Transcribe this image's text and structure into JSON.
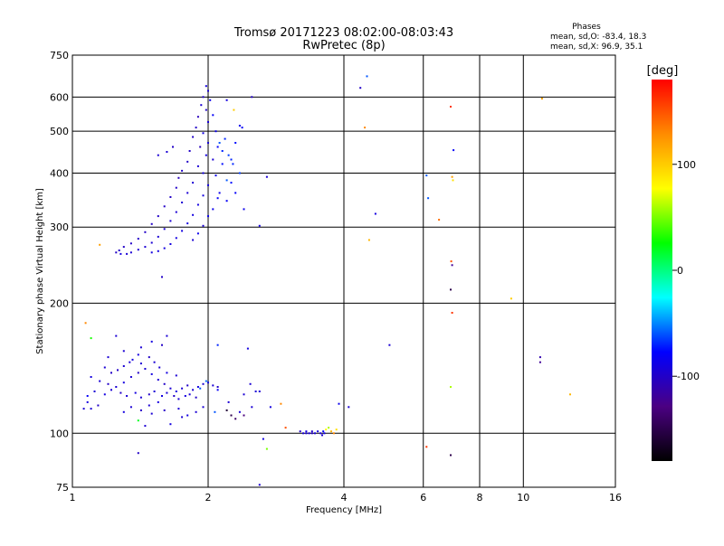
{
  "chart_data": {
    "type": "scatter",
    "title": "Tromsø 20171223 08:02:00-08:03:43",
    "subtitle": "RwPretec (8p)",
    "xlabel": "Frequency [MHz]",
    "ylabel": "Stationary phase Virtual Height [km]",
    "x_scale": "log",
    "y_scale": "log",
    "xlim": [
      1,
      16
    ],
    "ylim": [
      75,
      750
    ],
    "x_ticks": [
      1,
      2,
      4,
      6,
      8,
      10,
      16
    ],
    "x_tick_labels": [
      "1",
      "2",
      "4",
      "6",
      "8",
      "10",
      "16"
    ],
    "y_ticks": [
      75,
      100,
      200,
      300,
      400,
      500,
      600,
      750
    ],
    "y_tick_labels": [
      "75",
      "100",
      "200",
      "300",
      "400",
      "500",
      "600",
      "750"
    ],
    "grid": true,
    "colorbar": {
      "label": "[deg]",
      "range": [
        -180,
        180
      ],
      "ticks": [
        100,
        0,
        -100
      ],
      "tick_labels": [
        "100",
        "0",
        "-100"
      ],
      "colors": [
        "#000000",
        "#4b0082",
        "#0000ff",
        "#00ffff",
        "#00ff00",
        "#ffff00",
        "#ff8c00",
        "#ff0000"
      ]
    },
    "stats": {
      "heading": "Phases",
      "line1": "mean, sd,O: -83.4, 18.3",
      "line2": "mean, sd,X:  96.9, 35.1"
    },
    "series": [
      {
        "points": [
          [
            1.98,
            636,
            -90
          ],
          [
            2.0,
            620,
            -95
          ],
          [
            1.95,
            600,
            -100
          ],
          [
            2.02,
            590,
            -85
          ],
          [
            1.93,
            575,
            -95
          ],
          [
            1.98,
            560,
            -100
          ],
          [
            2.05,
            545,
            -80
          ],
          [
            1.9,
            540,
            -105
          ],
          [
            2.0,
            525,
            -95
          ],
          [
            1.88,
            510,
            -100
          ],
          [
            1.95,
            495,
            -90
          ],
          [
            2.08,
            500,
            -85
          ],
          [
            1.85,
            485,
            -100
          ],
          [
            2.0,
            470,
            -95
          ],
          [
            1.92,
            460,
            -105
          ],
          [
            2.1,
            460,
            -80
          ],
          [
            1.82,
            450,
            -100
          ],
          [
            1.98,
            440,
            -90
          ],
          [
            2.05,
            430,
            -95
          ],
          [
            1.8,
            425,
            -100
          ],
          [
            1.9,
            415,
            -95
          ],
          [
            2.15,
            420,
            -75
          ],
          [
            1.75,
            405,
            -100
          ],
          [
            1.95,
            400,
            -90
          ],
          [
            2.08,
            395,
            -85
          ],
          [
            1.72,
            390,
            -105
          ],
          [
            1.85,
            380,
            -95
          ],
          [
            2.0,
            375,
            -90
          ],
          [
            2.2,
            385,
            -60
          ],
          [
            1.7,
            370,
            -100
          ],
          [
            1.8,
            360,
            -95
          ],
          [
            1.95,
            355,
            -90
          ],
          [
            2.1,
            350,
            -80
          ],
          [
            1.65,
            352,
            -100
          ],
          [
            1.75,
            342,
            -95
          ],
          [
            1.9,
            338,
            -90
          ],
          [
            2.05,
            330,
            -85
          ],
          [
            1.6,
            335,
            -100
          ],
          [
            1.7,
            325,
            -95
          ],
          [
            1.85,
            320,
            -90
          ],
          [
            2.0,
            318,
            -85
          ],
          [
            1.55,
            318,
            -100
          ],
          [
            1.65,
            310,
            -95
          ],
          [
            1.8,
            306,
            -90
          ],
          [
            1.95,
            302,
            -95
          ],
          [
            1.5,
            305,
            -100
          ],
          [
            1.6,
            297,
            -95
          ],
          [
            1.75,
            294,
            -90
          ],
          [
            1.9,
            290,
            -85
          ],
          [
            1.45,
            292,
            -100
          ],
          [
            1.55,
            285,
            -95
          ],
          [
            1.7,
            283,
            -90
          ],
          [
            1.85,
            280,
            -95
          ],
          [
            1.4,
            282,
            -100
          ],
          [
            1.5,
            276,
            -95
          ],
          [
            1.65,
            274,
            -90
          ],
          [
            1.35,
            275,
            -100
          ],
          [
            1.45,
            270,
            -95
          ],
          [
            1.6,
            268,
            -90
          ],
          [
            1.3,
            270,
            -100
          ],
          [
            1.4,
            266,
            -95
          ],
          [
            1.55,
            264,
            -90
          ],
          [
            1.27,
            265,
            -100
          ],
          [
            1.35,
            262,
            -95
          ],
          [
            1.5,
            262,
            -90
          ],
          [
            1.25,
            262,
            -100
          ],
          [
            1.32,
            260,
            -95
          ],
          [
            1.28,
            260,
            -90
          ],
          [
            2.3,
            470,
            -75
          ],
          [
            2.25,
            430,
            -70
          ],
          [
            2.35,
            400,
            -65
          ],
          [
            2.3,
            360,
            -80
          ],
          [
            2.28,
            560,
            100
          ],
          [
            2.4,
            330,
            -85
          ],
          [
            2.18,
            480,
            -70
          ],
          [
            1.62,
            448,
            -95
          ],
          [
            1.67,
            460,
            -100
          ],
          [
            1.55,
            440,
            -95
          ],
          [
            1.58,
            230,
            -100
          ],
          [
            1.15,
            273,
            120
          ],
          [
            2.6,
            302,
            -90
          ],
          [
            2.7,
            392,
            -95
          ],
          [
            2.5,
            600,
            -100
          ],
          [
            2.35,
            515,
            -85
          ],
          [
            2.38,
            510,
            -80
          ],
          [
            2.2,
            590,
            -90
          ],
          [
            2.12,
            470,
            -60
          ],
          [
            2.22,
            440,
            -65
          ],
          [
            2.27,
            420,
            -70
          ],
          [
            2.15,
            450,
            -70
          ],
          [
            2.25,
            380,
            -75
          ],
          [
            2.12,
            360,
            -85
          ],
          [
            2.2,
            345,
            -80
          ],
          [
            1.1,
            135,
            -90
          ],
          [
            1.15,
            132,
            -95
          ],
          [
            1.2,
            130,
            -100
          ],
          [
            1.25,
            128,
            -95
          ],
          [
            1.3,
            131,
            -90
          ],
          [
            1.35,
            135,
            -95
          ],
          [
            1.4,
            138,
            -100
          ],
          [
            1.45,
            141,
            -95
          ],
          [
            1.5,
            137,
            -90
          ],
          [
            1.55,
            133,
            -95
          ],
          [
            1.6,
            130,
            -100
          ],
          [
            1.65,
            127,
            -95
          ],
          [
            1.7,
            125,
            -90
          ],
          [
            1.75,
            127,
            -95
          ],
          [
            1.8,
            129,
            -100
          ],
          [
            1.85,
            126,
            -95
          ],
          [
            1.9,
            128,
            -90
          ],
          [
            1.95,
            130,
            -95
          ],
          [
            2.0,
            131,
            -90
          ],
          [
            2.05,
            129,
            -95
          ],
          [
            2.1,
            128,
            -100
          ],
          [
            1.12,
            125,
            -95
          ],
          [
            1.18,
            123,
            -90
          ],
          [
            1.22,
            126,
            -95
          ],
          [
            1.28,
            124,
            -100
          ],
          [
            1.32,
            122,
            -95
          ],
          [
            1.38,
            124,
            -90
          ],
          [
            1.42,
            121,
            -95
          ],
          [
            1.48,
            123,
            -100
          ],
          [
            1.52,
            125,
            -95
          ],
          [
            1.58,
            122,
            -90
          ],
          [
            1.62,
            124,
            -95
          ],
          [
            1.68,
            122,
            -100
          ],
          [
            1.72,
            120,
            -95
          ],
          [
            1.78,
            122,
            -90
          ],
          [
            1.82,
            123,
            -95
          ],
          [
            1.88,
            121,
            -100
          ],
          [
            1.3,
            143,
            -95
          ],
          [
            1.36,
            148,
            -90
          ],
          [
            1.42,
            145,
            -95
          ],
          [
            1.48,
            150,
            -100
          ],
          [
            1.52,
            146,
            -95
          ],
          [
            1.4,
            152,
            -90
          ],
          [
            1.34,
            146,
            -95
          ],
          [
            1.26,
            140,
            -100
          ],
          [
            1.56,
            142,
            -95
          ],
          [
            1.62,
            138,
            -90
          ],
          [
            1.7,
            136,
            -95
          ],
          [
            1.22,
            138,
            -100
          ],
          [
            1.18,
            142,
            -95
          ],
          [
            1.08,
            118,
            -90
          ],
          [
            1.1,
            114,
            -95
          ],
          [
            1.14,
            116,
            -100
          ],
          [
            1.06,
            114,
            -95
          ],
          [
            1.3,
            112,
            -90
          ],
          [
            1.35,
            115,
            -95
          ],
          [
            1.42,
            113,
            -100
          ],
          [
            1.48,
            116,
            -95
          ],
          [
            1.55,
            118,
            -90
          ],
          [
            1.5,
            111,
            -95
          ],
          [
            1.6,
            113,
            -100
          ],
          [
            1.72,
            114,
            -95
          ],
          [
            1.8,
            110,
            -90
          ],
          [
            1.88,
            112,
            -95
          ],
          [
            1.62,
            168,
            -95
          ],
          [
            1.58,
            160,
            -100
          ],
          [
            1.5,
            163,
            -90
          ],
          [
            1.3,
            155,
            -95
          ],
          [
            1.2,
            150,
            -95
          ],
          [
            1.42,
            158,
            -95
          ],
          [
            1.07,
            180,
            130
          ],
          [
            1.1,
            166,
            30
          ],
          [
            1.25,
            168,
            -95
          ],
          [
            1.08,
            122,
            -80
          ],
          [
            1.4,
            107,
            20
          ],
          [
            1.45,
            104,
            -95
          ],
          [
            1.65,
            105,
            -90
          ],
          [
            1.75,
            109,
            -95
          ],
          [
            1.92,
            127,
            -60
          ],
          [
            1.98,
            132,
            -55
          ],
          [
            2.1,
            126,
            -80
          ],
          [
            1.95,
            115,
            -95
          ],
          [
            2.07,
            112,
            -60
          ],
          [
            2.2,
            113,
            -160
          ],
          [
            2.25,
            110,
            -150
          ],
          [
            2.3,
            108,
            -140
          ],
          [
            2.35,
            112,
            -95
          ],
          [
            2.4,
            110,
            -130
          ],
          [
            2.22,
            118,
            -95
          ],
          [
            2.5,
            115,
            -95
          ],
          [
            2.4,
            123,
            -95
          ],
          [
            2.55,
            125,
            -95
          ],
          [
            2.48,
            130,
            -95
          ],
          [
            2.6,
            125,
            -95
          ],
          [
            2.75,
            115,
            -90
          ],
          [
            2.9,
            117,
            130
          ],
          [
            2.1,
            160,
            -70
          ],
          [
            2.45,
            157,
            -90
          ],
          [
            1.4,
            90,
            -100
          ],
          [
            2.65,
            97,
            -90
          ],
          [
            2.7,
            92,
            50
          ],
          [
            2.6,
            76,
            -95
          ],
          [
            2.97,
            103,
            150
          ],
          [
            3.2,
            101,
            -100
          ],
          [
            3.25,
            100,
            -95
          ],
          [
            3.3,
            101,
            -90
          ],
          [
            3.35,
            100,
            -95
          ],
          [
            3.4,
            101,
            -100
          ],
          [
            3.45,
            100,
            -95
          ],
          [
            3.5,
            101,
            -90
          ],
          [
            3.55,
            100,
            -95
          ],
          [
            3.6,
            101,
            -80
          ],
          [
            3.65,
            102,
            80
          ],
          [
            3.7,
            103,
            60
          ],
          [
            3.75,
            101,
            110
          ],
          [
            3.8,
            100,
            130
          ],
          [
            3.85,
            102,
            90
          ],
          [
            3.58,
            99,
            -95
          ],
          [
            3.62,
            100,
            -90
          ],
          [
            3.9,
            117,
            -85
          ],
          [
            3.3,
            100,
            -95
          ],
          [
            3.4,
            100,
            -100
          ],
          [
            4.5,
            670,
            -60
          ],
          [
            4.35,
            630,
            -100
          ],
          [
            4.45,
            510,
            130
          ],
          [
            4.7,
            322,
            -90
          ],
          [
            4.55,
            280,
            110
          ],
          [
            4.1,
            115,
            -95
          ],
          [
            5.05,
            160,
            -95
          ],
          [
            6.1,
            395,
            -60
          ],
          [
            6.15,
            350,
            -60
          ],
          [
            6.5,
            312,
            140
          ],
          [
            6.9,
            570,
            160
          ],
          [
            7.0,
            452,
            -80
          ],
          [
            6.95,
            392,
            120
          ],
          [
            6.98,
            385,
            90
          ],
          [
            6.92,
            250,
            150
          ],
          [
            6.95,
            245,
            -120
          ],
          [
            6.9,
            215,
            -150
          ],
          [
            6.95,
            190,
            160
          ],
          [
            6.9,
            128,
            60
          ],
          [
            6.1,
            93,
            160
          ],
          [
            6.9,
            89,
            -150
          ],
          [
            9.4,
            205,
            100
          ],
          [
            11.0,
            595,
            120
          ],
          [
            10.9,
            150,
            -110
          ],
          [
            10.9,
            146,
            -120
          ],
          [
            12.7,
            123,
            110
          ]
        ]
      }
    ]
  }
}
